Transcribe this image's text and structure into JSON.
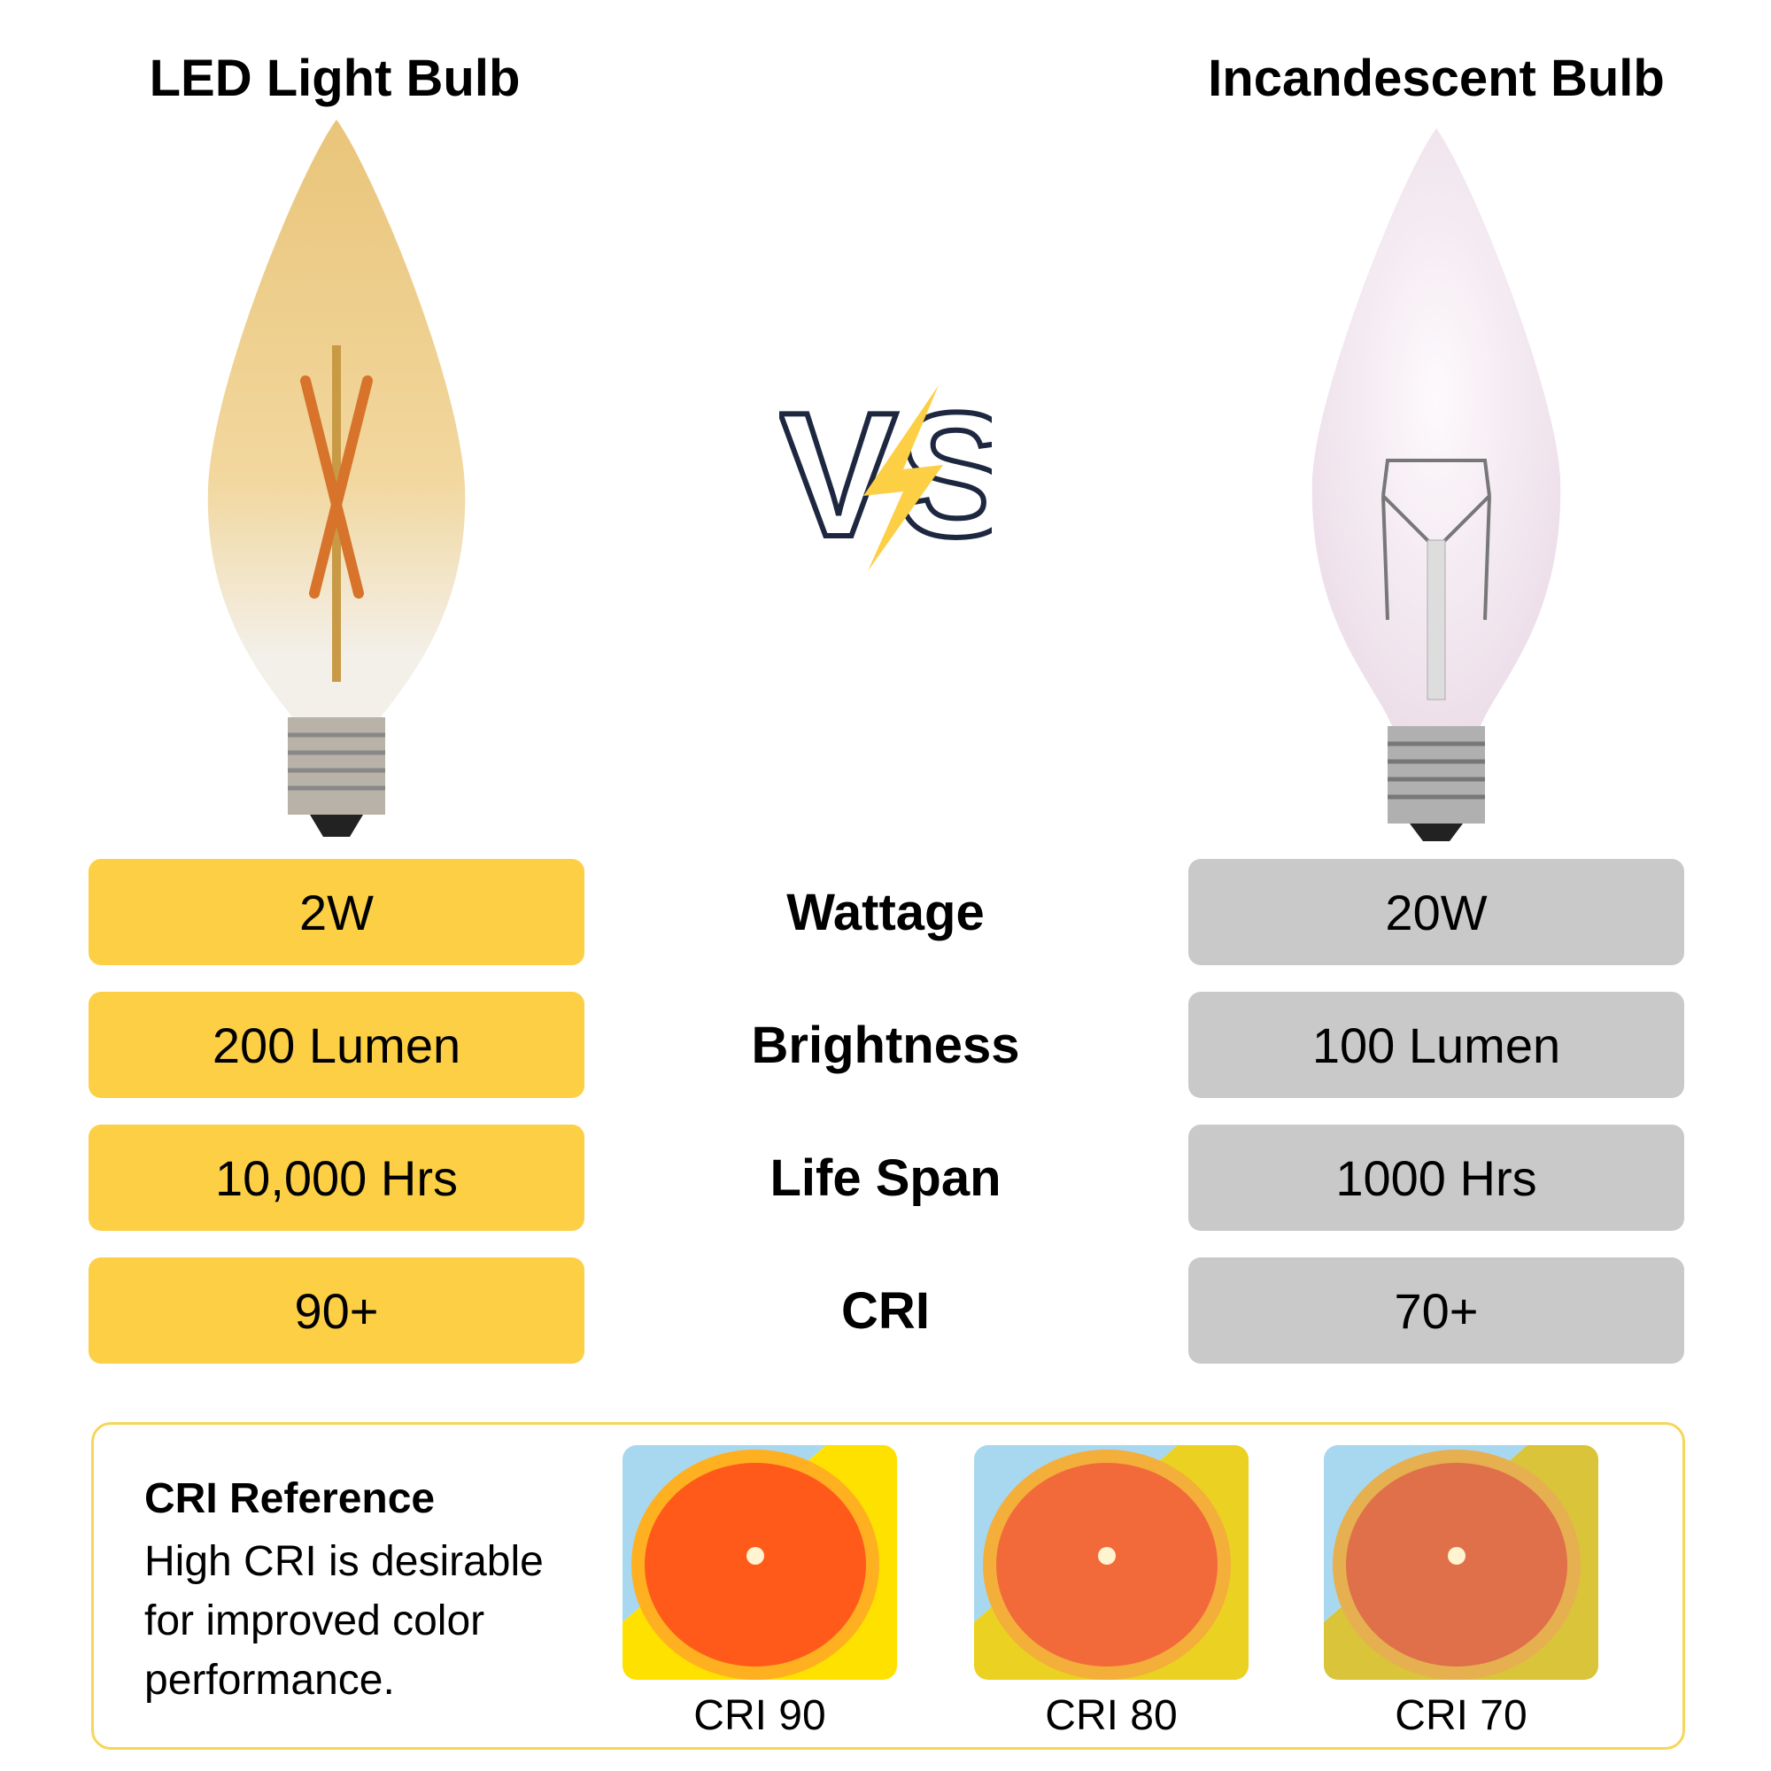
{
  "headers": {
    "led": "LED Light Bulb",
    "incandescent": "Incandescent Bulb"
  },
  "vs_label": "VS",
  "rows": [
    {
      "label": "Wattage",
      "led": "2W",
      "incandescent": "20W"
    },
    {
      "label": "Brightness",
      "led": "200 Lumen",
      "incandescent": "100 Lumen"
    },
    {
      "label": "Life Span",
      "led": "10,000 Hrs",
      "incandescent": "1000 Hrs"
    },
    {
      "label": "CRI",
      "led": "90+",
      "incandescent": "70+"
    }
  ],
  "cri_reference": {
    "title": "CRI Reference",
    "description": "High CRI is desirable for improved color performance.",
    "samples": [
      {
        "caption": "CRI 90",
        "bg": "#ffe100",
        "flesh": "#ff5a1a"
      },
      {
        "caption": "CRI 80",
        "bg": "#ebd121",
        "flesh": "#f26a3a"
      },
      {
        "caption": "CRI 70",
        "bg": "#d9c43a",
        "flesh": "#e0704a"
      }
    ]
  },
  "colors": {
    "led_box": "#fccf45",
    "incandescent_box": "#c9c9c9",
    "accent": "#f6d65a"
  }
}
